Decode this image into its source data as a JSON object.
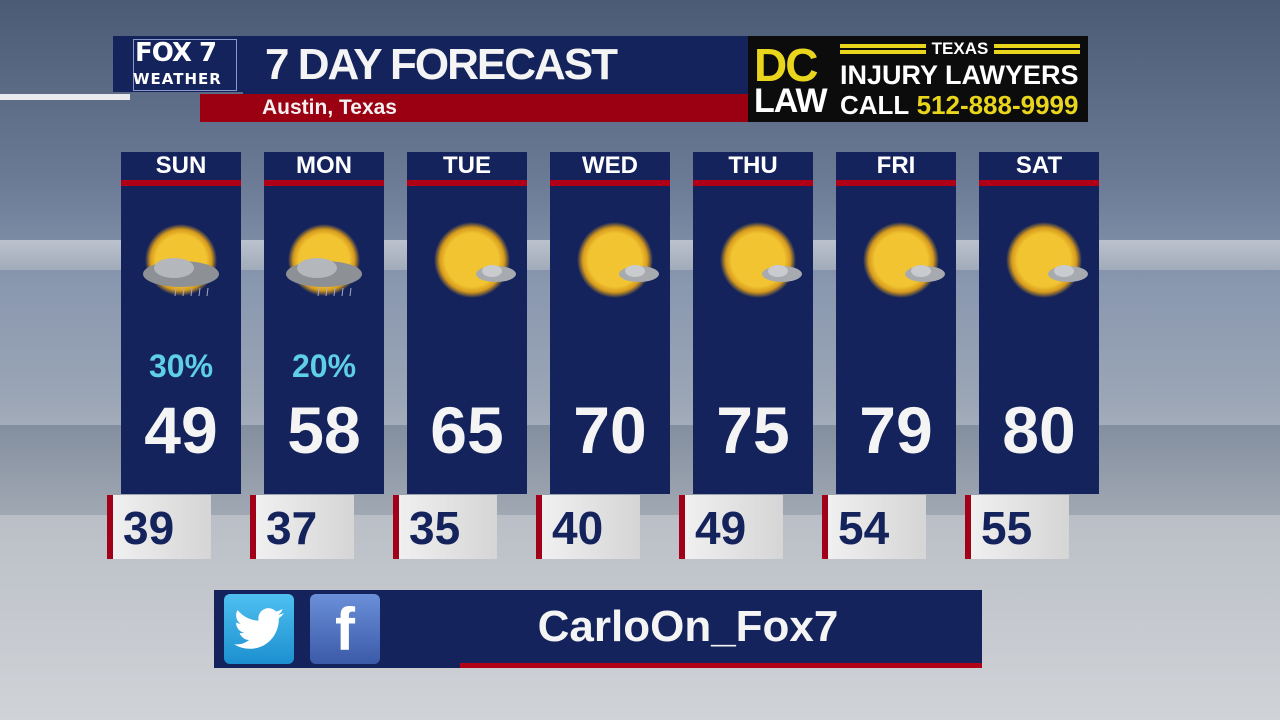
{
  "header": {
    "logo_top": "FOX 7",
    "logo_bottom": "WEATHER",
    "title": "7 DAY FORECAST",
    "location": "Austin, Texas"
  },
  "ad": {
    "dc": "DC",
    "law": "LAW",
    "state": "TEXAS",
    "line1": "INJURY LAWYERS",
    "call": "CALL",
    "phone": "512-888-9999"
  },
  "days": [
    {
      "day": "SUN",
      "precip": "30%",
      "high": "49",
      "low": "39",
      "icon": "partly-cloudy-rain-icon"
    },
    {
      "day": "MON",
      "precip": "20%",
      "high": "58",
      "low": "37",
      "icon": "partly-cloudy-rain-icon"
    },
    {
      "day": "TUE",
      "precip": "",
      "high": "65",
      "low": "35",
      "icon": "mostly-sunny-icon"
    },
    {
      "day": "WED",
      "precip": "",
      "high": "70",
      "low": "40",
      "icon": "mostly-sunny-icon"
    },
    {
      "day": "THU",
      "precip": "",
      "high": "75",
      "low": "49",
      "icon": "mostly-sunny-icon"
    },
    {
      "day": "FRI",
      "precip": "",
      "high": "79",
      "low": "54",
      "icon": "mostly-sunny-icon"
    },
    {
      "day": "SAT",
      "precip": "",
      "high": "80",
      "low": "55",
      "icon": "mostly-sunny-icon"
    }
  ],
  "social": {
    "handle": "CarloOn_Fox7",
    "twitter_icon": "twitter-icon",
    "facebook_icon": "facebook-icon"
  },
  "colors": {
    "navy": "#14235c",
    "red": "#b00018",
    "precip": "#5fcfe6",
    "ad_yellow": "#e9d51c"
  }
}
